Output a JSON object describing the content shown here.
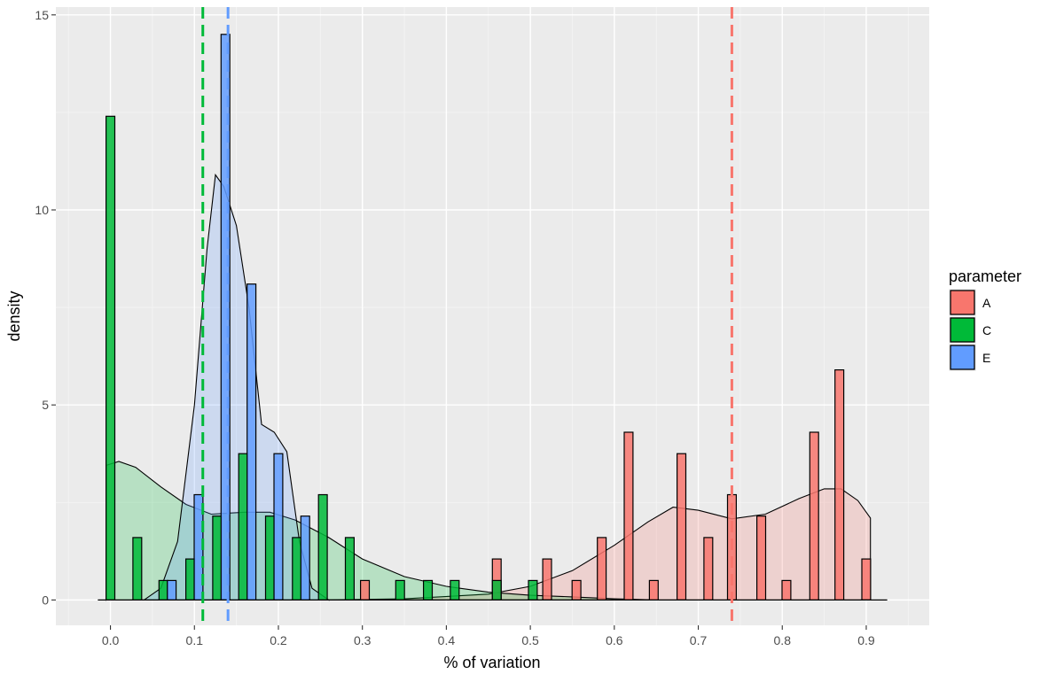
{
  "chart_data": {
    "type": "histogram",
    "xlabel": "% of variation",
    "ylabel": "density",
    "xlim": [
      -0.065,
      0.975
    ],
    "ylim": [
      -0.65,
      15.2
    ],
    "x_ticks": [
      0.0,
      0.1,
      0.2,
      0.3,
      0.4,
      0.5,
      0.6,
      0.7,
      0.8,
      0.9
    ],
    "x_tick_labels": [
      "0.0",
      "0.1",
      "0.2",
      "0.3",
      "0.4",
      "0.5",
      "0.6",
      "0.7",
      "0.8",
      "0.9"
    ],
    "y_ticks": [
      0,
      5,
      10,
      15
    ],
    "y_tick_labels": [
      "0",
      "5",
      "10",
      "15"
    ],
    "grid": true,
    "legend": {
      "title": "parameter",
      "placement": "right"
    },
    "bin_width": 0.0105,
    "series": [
      {
        "name": "A",
        "color": "#F8766D",
        "mean_line": 0.74,
        "bars": [
          {
            "x": 0.303,
            "y": 0.5
          },
          {
            "x": 0.46,
            "y": 1.05
          },
          {
            "x": 0.52,
            "y": 1.05
          },
          {
            "x": 0.555,
            "y": 0.5
          },
          {
            "x": 0.585,
            "y": 1.6
          },
          {
            "x": 0.617,
            "y": 4.3
          },
          {
            "x": 0.647,
            "y": 0.5
          },
          {
            "x": 0.68,
            "y": 3.75
          },
          {
            "x": 0.712,
            "y": 1.6
          },
          {
            "x": 0.74,
            "y": 2.7
          },
          {
            "x": 0.775,
            "y": 2.15
          },
          {
            "x": 0.805,
            "y": 0.5
          },
          {
            "x": 0.838,
            "y": 4.3
          },
          {
            "x": 0.868,
            "y": 5.9
          },
          {
            "x": 0.9,
            "y": 1.05
          }
        ],
        "density": [
          [
            0.25,
            0.0
          ],
          [
            0.35,
            0.03
          ],
          [
            0.45,
            0.15
          ],
          [
            0.5,
            0.35
          ],
          [
            0.55,
            0.75
          ],
          [
            0.6,
            1.4
          ],
          [
            0.64,
            2.0
          ],
          [
            0.67,
            2.38
          ],
          [
            0.7,
            2.3
          ],
          [
            0.74,
            2.08
          ],
          [
            0.78,
            2.2
          ],
          [
            0.82,
            2.6
          ],
          [
            0.85,
            2.85
          ],
          [
            0.87,
            2.85
          ],
          [
            0.89,
            2.55
          ],
          [
            0.905,
            2.1
          ],
          [
            0.905,
            0.0
          ]
        ]
      },
      {
        "name": "C",
        "color": "#00BA38",
        "mean_line": 0.11,
        "bars": [
          {
            "x": 0.0,
            "y": 12.4
          },
          {
            "x": 0.032,
            "y": 1.6
          },
          {
            "x": 0.063,
            "y": 0.5
          },
          {
            "x": 0.095,
            "y": 1.05
          },
          {
            "x": 0.127,
            "y": 2.15
          },
          {
            "x": 0.158,
            "y": 3.75
          },
          {
            "x": 0.19,
            "y": 2.15
          },
          {
            "x": 0.222,
            "y": 1.6
          },
          {
            "x": 0.253,
            "y": 2.7
          },
          {
            "x": 0.285,
            "y": 1.6
          },
          {
            "x": 0.345,
            "y": 0.5
          },
          {
            "x": 0.378,
            "y": 0.5
          },
          {
            "x": 0.41,
            "y": 0.5
          },
          {
            "x": 0.46,
            "y": 0.5
          },
          {
            "x": 0.503,
            "y": 0.5
          }
        ],
        "density": [
          [
            -0.005,
            0.0
          ],
          [
            -0.005,
            3.45
          ],
          [
            0.01,
            3.55
          ],
          [
            0.03,
            3.4
          ],
          [
            0.06,
            2.9
          ],
          [
            0.09,
            2.45
          ],
          [
            0.12,
            2.2
          ],
          [
            0.16,
            2.25
          ],
          [
            0.19,
            2.25
          ],
          [
            0.22,
            2.05
          ],
          [
            0.26,
            1.6
          ],
          [
            0.3,
            1.05
          ],
          [
            0.35,
            0.6
          ],
          [
            0.4,
            0.35
          ],
          [
            0.45,
            0.2
          ],
          [
            0.5,
            0.12
          ],
          [
            0.55,
            0.08
          ],
          [
            0.6,
            0.03
          ],
          [
            0.65,
            0.0
          ]
        ]
      },
      {
        "name": "E",
        "color": "#619CFF",
        "mean_line": 0.14,
        "bars": [
          {
            "x": 0.073,
            "y": 0.5
          },
          {
            "x": 0.105,
            "y": 2.7
          },
          {
            "x": 0.137,
            "y": 14.5
          },
          {
            "x": 0.168,
            "y": 8.1
          },
          {
            "x": 0.2,
            "y": 3.75
          },
          {
            "x": 0.232,
            "y": 2.15
          }
        ],
        "density": [
          [
            0.04,
            0.0
          ],
          [
            0.06,
            0.3
          ],
          [
            0.08,
            1.5
          ],
          [
            0.1,
            5.0
          ],
          [
            0.115,
            9.0
          ],
          [
            0.125,
            10.9
          ],
          [
            0.135,
            10.6
          ],
          [
            0.15,
            9.6
          ],
          [
            0.165,
            7.5
          ],
          [
            0.18,
            4.5
          ],
          [
            0.195,
            4.3
          ],
          [
            0.21,
            3.8
          ],
          [
            0.225,
            1.5
          ],
          [
            0.24,
            0.3
          ],
          [
            0.26,
            0.0
          ]
        ]
      }
    ]
  }
}
